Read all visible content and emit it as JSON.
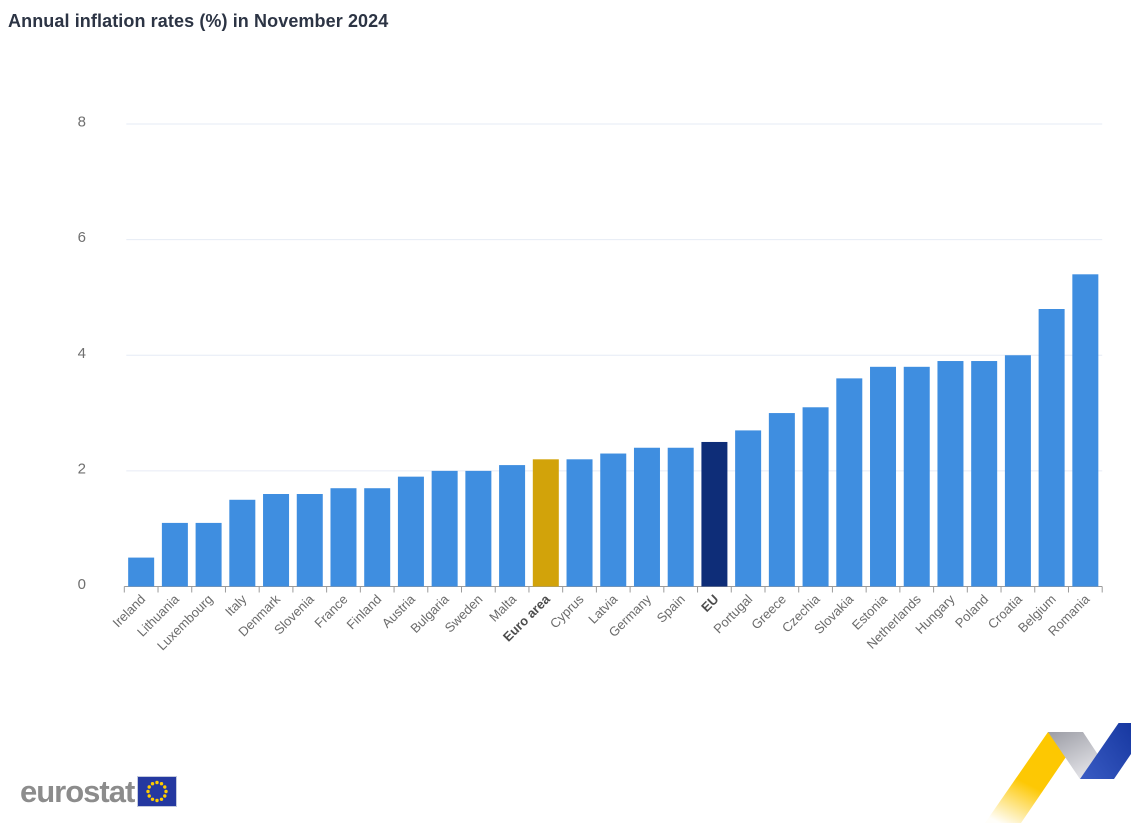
{
  "chart": {
    "title": "Annual inflation rates (%) in November 2024"
  },
  "chart_data": {
    "type": "bar",
    "title": "Annual inflation rates (%) in November 2024",
    "xlabel": "",
    "ylabel": "",
    "ylim": [
      0,
      8
    ],
    "yticks": [
      0,
      2,
      4,
      6,
      8
    ],
    "grid": true,
    "legend": false,
    "bars": [
      {
        "label": "Ireland",
        "value": 0.5,
        "type": "member"
      },
      {
        "label": "Lithuania",
        "value": 1.1,
        "type": "member"
      },
      {
        "label": "Luxembourg",
        "value": 1.1,
        "type": "member"
      },
      {
        "label": "Italy",
        "value": 1.5,
        "type": "member"
      },
      {
        "label": "Denmark",
        "value": 1.6,
        "type": "member"
      },
      {
        "label": "Slovenia",
        "value": 1.6,
        "type": "member"
      },
      {
        "label": "France",
        "value": 1.7,
        "type": "member"
      },
      {
        "label": "Finland",
        "value": 1.7,
        "type": "member"
      },
      {
        "label": "Austria",
        "value": 1.9,
        "type": "member"
      },
      {
        "label": "Bulgaria",
        "value": 2.0,
        "type": "member"
      },
      {
        "label": "Sweden",
        "value": 2.0,
        "type": "member"
      },
      {
        "label": "Malta",
        "value": 2.1,
        "type": "member"
      },
      {
        "label": "Euro area",
        "value": 2.2,
        "type": "euro-area"
      },
      {
        "label": "Cyprus",
        "value": 2.2,
        "type": "member"
      },
      {
        "label": "Latvia",
        "value": 2.3,
        "type": "member"
      },
      {
        "label": "Germany",
        "value": 2.4,
        "type": "member"
      },
      {
        "label": "Spain",
        "value": 2.4,
        "type": "member"
      },
      {
        "label": "EU",
        "value": 2.5,
        "type": "eu"
      },
      {
        "label": "Portugal",
        "value": 2.7,
        "type": "member"
      },
      {
        "label": "Greece",
        "value": 3.0,
        "type": "member"
      },
      {
        "label": "Czechia",
        "value": 3.1,
        "type": "member"
      },
      {
        "label": "Slovakia",
        "value": 3.6,
        "type": "member"
      },
      {
        "label": "Estonia",
        "value": 3.8,
        "type": "member"
      },
      {
        "label": "Netherlands",
        "value": 3.8,
        "type": "member"
      },
      {
        "label": "Hungary",
        "value": 3.9,
        "type": "member"
      },
      {
        "label": "Poland",
        "value": 3.9,
        "type": "member"
      },
      {
        "label": "Croatia",
        "value": 4.0,
        "type": "member"
      },
      {
        "label": "Belgium",
        "value": 4.8,
        "type": "member"
      },
      {
        "label": "Romania",
        "value": 5.4,
        "type": "member"
      }
    ],
    "colors": {
      "member_bar": "#3f8ee0",
      "euro_area_bar": "#d2a30a",
      "eu_bar": "#0e2d78",
      "gridline": "#e6ebf5",
      "axis_line": "#9b9b9b",
      "tick_label": "#6f6f6f",
      "category_label": "#6b6b6b",
      "category_label_bold": "#4c4c4c"
    }
  },
  "logo": {
    "text": "eurostat",
    "flag_icon": "eu-flag",
    "flag_blue": "#2438a0",
    "star_yellow": "#ffcc00"
  },
  "ribbon": {
    "yellow": "#fdc800",
    "gray": "#a8a8b0",
    "blue": "#16399e"
  }
}
